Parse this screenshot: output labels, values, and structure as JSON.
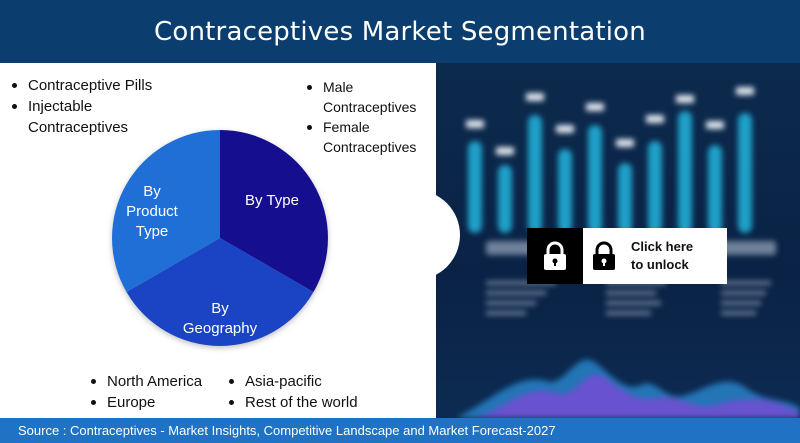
{
  "header": {
    "title": "Contraceptives Market Segmentation"
  },
  "segments": {
    "by_product_type": {
      "label_lines": [
        "By",
        "Product",
        "Type"
      ],
      "items": [
        "Contraceptive Pills",
        "Injectable",
        "Contraceptives"
      ]
    },
    "by_type": {
      "label": "By Type",
      "items": [
        "Male",
        "Contraceptives",
        "Female",
        "Contraceptives"
      ]
    },
    "by_geography": {
      "label_lines": [
        "By",
        "Geography"
      ],
      "items_col1": [
        "North America",
        "Europe"
      ],
      "items_col2": [
        "Asia-pacific",
        "Rest of the world"
      ]
    }
  },
  "unlock": {
    "line1": "Click here",
    "line2": "to unlock"
  },
  "footer": {
    "source": "Source : Contraceptives - Market Insights, Competitive Landscape and Market Forecast-2027"
  },
  "colors": {
    "header_bg": "#0b3d6e",
    "footer_bg": "#1f72c4",
    "slice_product_type": "#1f6fd6",
    "slice_type": "#150f8f",
    "slice_geography": "#1a44c4",
    "dashboard_bg": "#0a2245"
  },
  "icons": [
    "lock-icon",
    "padlock-icon"
  ]
}
